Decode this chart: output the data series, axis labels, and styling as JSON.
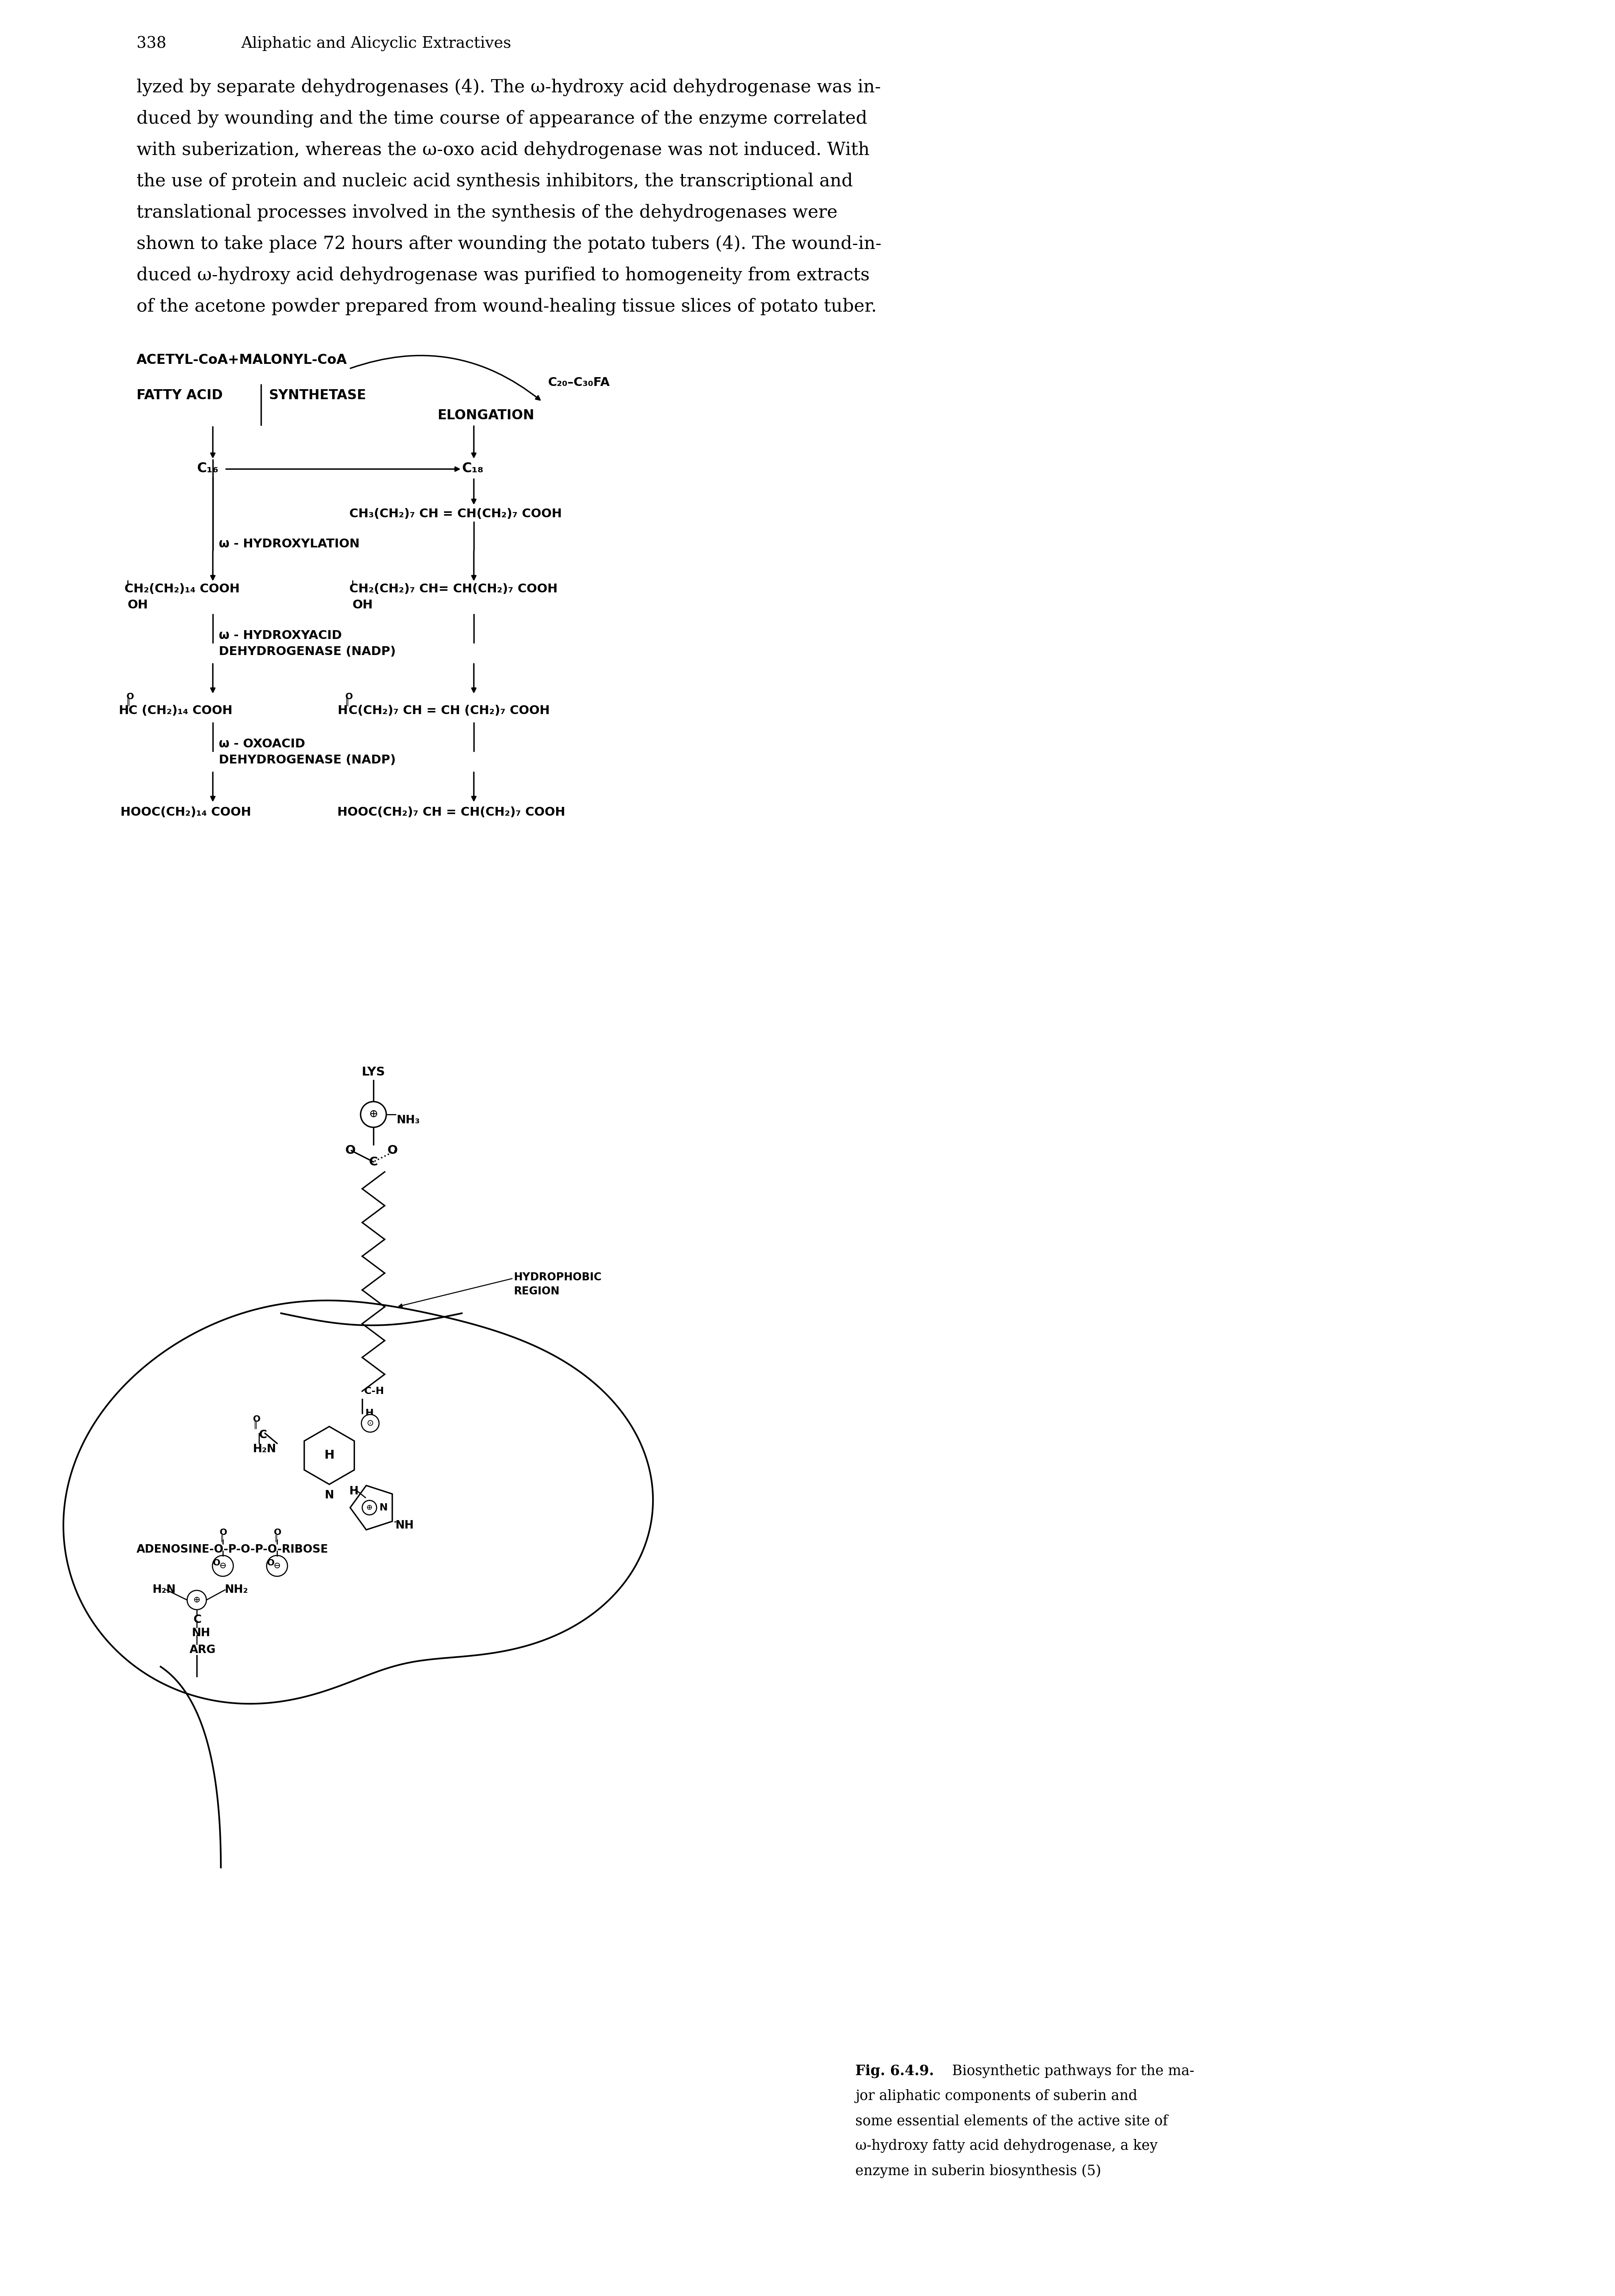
{
  "page_number": "338",
  "header": "Aliphatic and Alicyclic Extractives",
  "body_lines": [
    "lyzed by separate dehydrogenases (4). The ω-hydroxy acid dehydrogenase was in-",
    "duced by wounding and the time course of appearance of the enzyme correlated",
    "with suberization, whereas the ω-oxo acid dehydrogenase was not induced. With",
    "the use of protein and nucleic acid synthesis inhibitors, the transcriptional and",
    "translational processes involved in the synthesis of the dehydrogenases were",
    "shown to take place 72 hours after wounding the potato tubers (4). The wound-in-",
    "duced ω-hydroxy acid dehydrogenase was purified to homogeneity from extracts",
    "of the acetone powder prepared from wound-healing tissue slices of potato tuber."
  ],
  "caption_bold": "Fig. 6.4.9.",
  "caption_lines": [
    " Biosynthetic pathways for the ma-",
    "jor aliphatic components of suberin and",
    "some essential elements of the active site of",
    "ω-hydroxy fatty acid dehydrogenase, a key",
    "enzyme in suberin biosynthesis (5)"
  ],
  "bg": "#ffffff"
}
